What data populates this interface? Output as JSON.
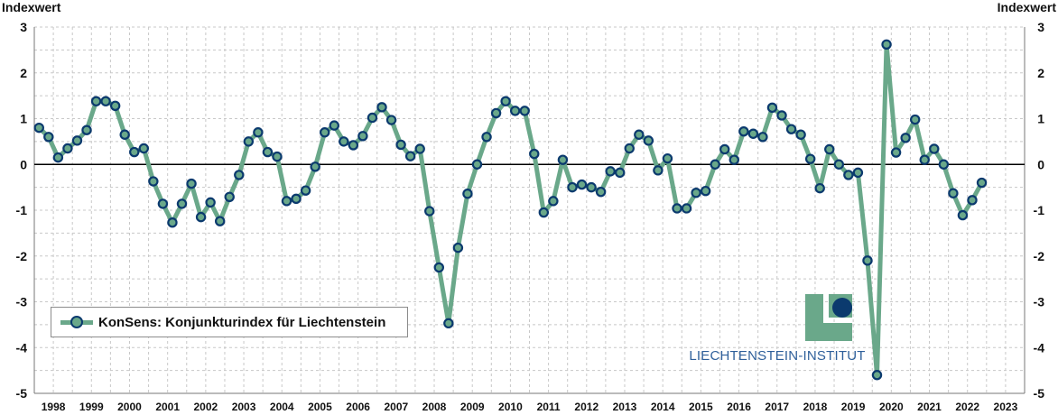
{
  "chart_data": {
    "type": "line",
    "ylabel_left": "Indexwert",
    "ylabel_right": "Indexwert",
    "ylim": [
      -5,
      3
    ],
    "yticks": [
      3,
      2,
      1,
      0,
      -1,
      -2,
      -3,
      -4,
      -5
    ],
    "x_start_year": 1998,
    "x_end_year": 2023,
    "year_labels": [
      "1998",
      "1999",
      "2000",
      "2001",
      "2002",
      "2003",
      "2004",
      "2005",
      "2006",
      "2007",
      "2008",
      "2009",
      "2010",
      "2011",
      "2012",
      "2013",
      "2014",
      "2015",
      "2016",
      "2017",
      "2018",
      "2019",
      "2020",
      "2021",
      "2022",
      "2023"
    ],
    "grid": true,
    "legend_position": "bottom-left",
    "colors": {
      "line": "#6aa88a",
      "marker_edge": "#0b3a6e",
      "zero_line": "#000000",
      "grid": "#c8c8c8"
    },
    "series": [
      {
        "name": "KonSens: Konjunkturindex für Liechtenstein",
        "x": [
          "1998-Q1",
          "1998-Q2",
          "1998-Q3",
          "1998-Q4",
          "1999-Q1",
          "1999-Q2",
          "1999-Q3",
          "1999-Q4",
          "2000-Q1",
          "2000-Q2",
          "2000-Q3",
          "2000-Q4",
          "2001-Q1",
          "2001-Q2",
          "2001-Q3",
          "2001-Q4",
          "2002-Q1",
          "2002-Q2",
          "2002-Q3",
          "2002-Q4",
          "2003-Q1",
          "2003-Q2",
          "2003-Q3",
          "2003-Q4",
          "2004-Q1",
          "2004-Q2",
          "2004-Q3",
          "2004-Q4",
          "2005-Q1",
          "2005-Q2",
          "2005-Q3",
          "2005-Q4",
          "2006-Q1",
          "2006-Q2",
          "2006-Q3",
          "2006-Q4",
          "2007-Q1",
          "2007-Q2",
          "2007-Q3",
          "2007-Q4",
          "2008-Q1",
          "2008-Q2",
          "2008-Q3",
          "2008-Q4",
          "2009-Q1",
          "2009-Q2",
          "2009-Q3",
          "2009-Q4",
          "2010-Q1",
          "2010-Q2",
          "2010-Q3",
          "2010-Q4",
          "2011-Q1",
          "2011-Q2",
          "2011-Q3",
          "2011-Q4",
          "2012-Q1",
          "2012-Q2",
          "2012-Q3",
          "2012-Q4",
          "2013-Q1",
          "2013-Q2",
          "2013-Q3",
          "2013-Q4",
          "2014-Q1",
          "2014-Q2",
          "2014-Q3",
          "2014-Q4",
          "2015-Q1",
          "2015-Q2",
          "2015-Q3",
          "2015-Q4",
          "2016-Q1",
          "2016-Q2",
          "2016-Q3",
          "2016-Q4",
          "2017-Q1",
          "2017-Q2",
          "2017-Q3",
          "2017-Q4",
          "2018-Q1",
          "2018-Q2",
          "2018-Q3",
          "2018-Q4",
          "2019-Q1",
          "2019-Q2",
          "2019-Q3",
          "2019-Q4",
          "2020-Q1",
          "2020-Q2",
          "2020-Q3",
          "2020-Q4",
          "2021-Q1",
          "2021-Q2",
          "2021-Q3",
          "2021-Q4",
          "2022-Q1",
          "2022-Q2",
          "2022-Q3",
          "2022-Q4"
        ],
        "values": [
          0.8,
          0.6,
          0.15,
          0.35,
          0.52,
          0.75,
          1.38,
          1.38,
          1.28,
          0.65,
          0.27,
          0.35,
          -0.37,
          -0.86,
          -1.27,
          -0.86,
          -0.42,
          -1.15,
          -0.83,
          -1.24,
          -0.71,
          -0.23,
          0.5,
          0.7,
          0.27,
          0.17,
          -0.8,
          -0.75,
          -0.57,
          -0.05,
          0.7,
          0.85,
          0.5,
          0.42,
          0.62,
          1.02,
          1.25,
          0.97,
          0.43,
          0.18,
          0.34,
          -1.02,
          -2.25,
          -3.47,
          -1.82,
          -0.64,
          0.0,
          0.6,
          1.12,
          1.38,
          1.17,
          1.17,
          0.23,
          -1.05,
          -0.8,
          0.1,
          -0.5,
          -0.44,
          -0.5,
          -0.6,
          -0.15,
          -0.18,
          0.35,
          0.65,
          0.52,
          -0.13,
          0.13,
          -0.96,
          -0.96,
          -0.62,
          -0.58,
          0.0,
          0.33,
          0.1,
          0.72,
          0.67,
          0.6,
          1.24,
          1.07,
          0.77,
          0.65,
          0.12,
          -0.52,
          0.33,
          0.0,
          -0.23,
          -0.18,
          -2.1,
          -4.6,
          2.62,
          0.26,
          0.58,
          0.98,
          0.1,
          0.34,
          0.0,
          -0.63,
          -1.11,
          -0.78,
          -0.4
        ]
      }
    ]
  },
  "legend": {
    "label": "KonSens: Konjunkturindex für Liechtenstein"
  },
  "logo": {
    "text": "LIECHTENSTEIN-INSTITUT"
  }
}
